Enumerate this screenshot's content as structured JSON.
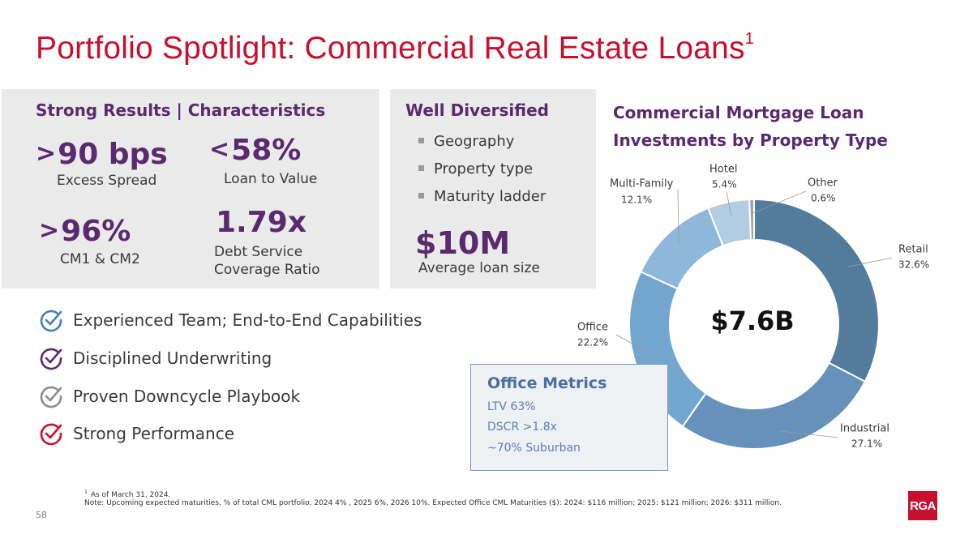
{
  "title": {
    "main": "Portfolio Spotlight: Commercial Real Estate Loans",
    "footnote_ref": "1"
  },
  "strong_results": {
    "heading": "Strong Results | Characteristics",
    "metrics": [
      {
        "symbol": ">",
        "value": "90 bps",
        "label": "Excess Spread"
      },
      {
        "symbol": "<",
        "value": "58%",
        "label": "Loan to Value"
      },
      {
        "symbol": ">",
        "value": "96%",
        "label": "CM1 & CM2"
      },
      {
        "symbol": "",
        "value": "1.79x",
        "label_line1": "Debt Service",
        "label_line2": "Coverage Ratio"
      }
    ]
  },
  "well_diversified": {
    "heading": "Well Diversified",
    "bullets": [
      "Geography",
      "Property type",
      "Maturity ladder"
    ],
    "avg_value": "$10M",
    "avg_label": "Average loan size"
  },
  "checklist": [
    {
      "text": "Experienced Team; End-to-End Capabilities",
      "color": "#4a7fb5"
    },
    {
      "text": "Disciplined Underwriting",
      "color": "#5a2a6e"
    },
    {
      "text": "Proven Downcycle Playbook",
      "color": "#8c8c8c"
    },
    {
      "text": "Strong Performance",
      "color": "#c8102e"
    }
  ],
  "office_metrics": {
    "title": "Office Metrics",
    "items": [
      "LTV 63%",
      "DSCR >1.8x",
      "~70% Suburban"
    ]
  },
  "chart_data": {
    "type": "pie",
    "title": "Commercial Mortgage Loan Investments by Property Type",
    "center_label": "$7.6B",
    "slices": [
      {
        "name": "Retail",
        "value": 32.6,
        "label": "32.6%",
        "color": "#527b9c"
      },
      {
        "name": "Industrial",
        "value": 27.1,
        "label": "27.1%",
        "color": "#6591ba"
      },
      {
        "name": "Office",
        "value": 22.2,
        "label": "22.2%",
        "color": "#72a6cf"
      },
      {
        "name": "Multi-Family",
        "value": 12.1,
        "label": "12.1%",
        "color": "#8fb7d9"
      },
      {
        "name": "Hotel",
        "value": 5.4,
        "label": "5.4%",
        "color": "#b1cde4"
      },
      {
        "name": "Other",
        "value": 0.6,
        "label": "0.6%",
        "color": "#9aa3ab"
      }
    ]
  },
  "footnotes": {
    "ref": "1",
    "line1": "As of March 31, 2024.",
    "line2": "Note: Upcoming expected maturities, % of total CML portfolio, 2024  4% ,  2025 6%, 2026 10%. Expected Office CML Maturities ($): 2024: $116 million; 2025: $121 million;  2026: $311 million."
  },
  "page_number": "58",
  "logo_text": "RGA",
  "colors": {
    "accent_red": "#c8102e",
    "purple": "#5a2a6e",
    "panel_gray": "#ebeaea"
  }
}
